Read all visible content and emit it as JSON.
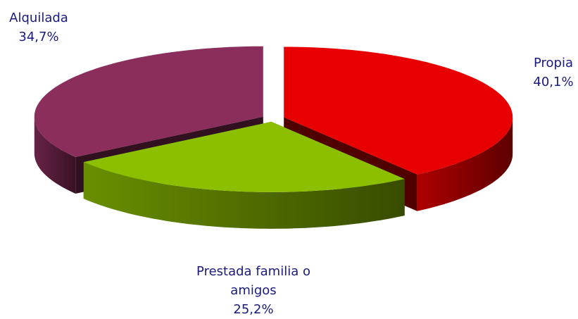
{
  "chart_data": {
    "type": "pie",
    "categories": [
      "Propia",
      "Prestada familia o amigos",
      "Alquilada"
    ],
    "values": [
      40.1,
      25.2,
      34.7
    ],
    "value_labels": [
      "40,1%",
      "25,2%",
      "34,7%"
    ],
    "colors": [
      "#e80000",
      "#8cbf00",
      "#8b2e5c"
    ]
  }
}
